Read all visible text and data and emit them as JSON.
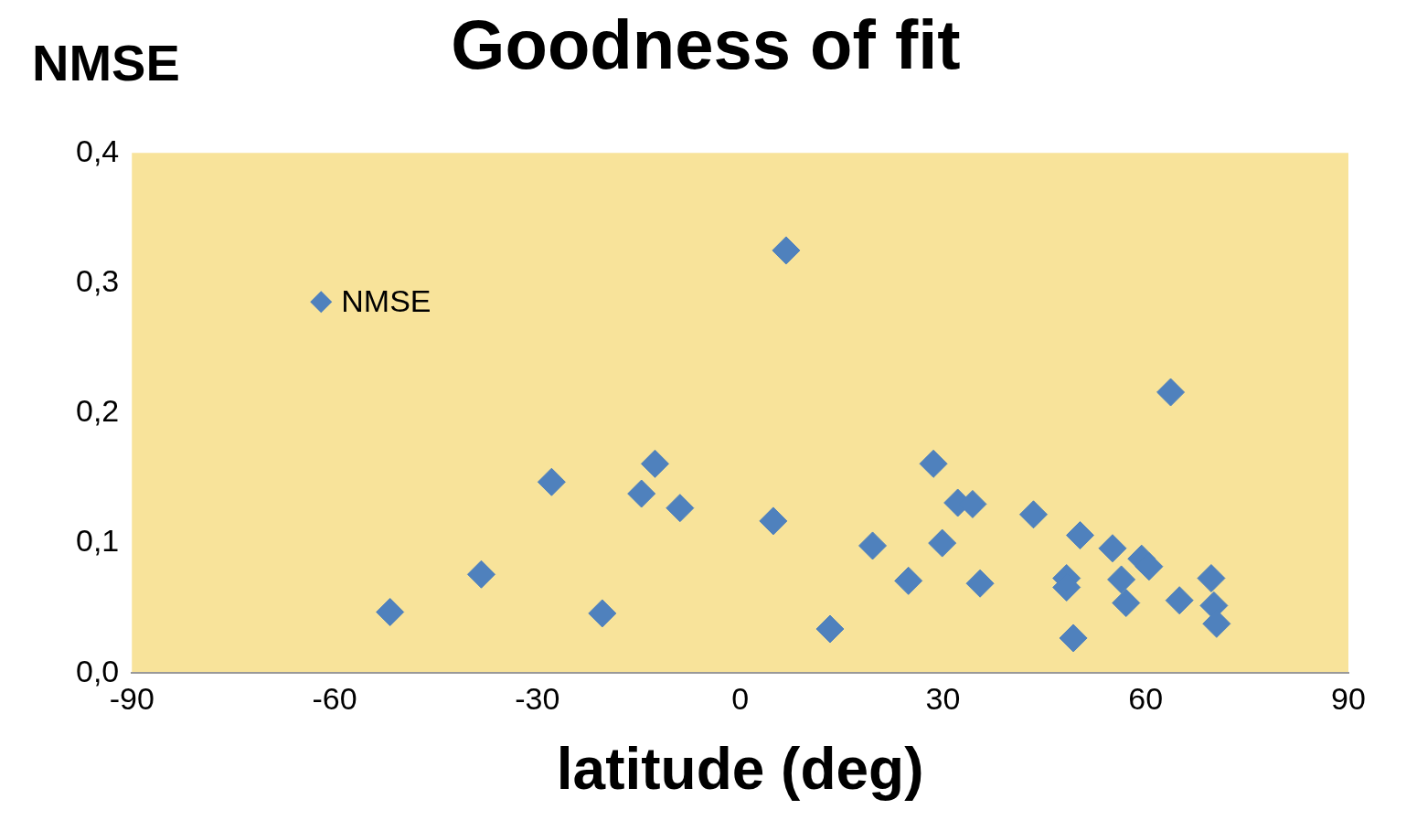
{
  "chart_data": {
    "type": "scatter",
    "title": "Goodness of fit",
    "xlabel": "latitude (deg)",
    "ylabel": "NMSE",
    "series": [
      {
        "name": "NMSE",
        "color": "#4f81bd",
        "x": [
          -51.8,
          -38.3,
          -27.9,
          -20.4,
          -14.6,
          -12.6,
          -8.9,
          4.9,
          6.8,
          13.3,
          19.6,
          24.9,
          28.6,
          29.9,
          32.2,
          34.4,
          35.5,
          43.4,
          48.3,
          48.3,
          49.3,
          50.3,
          55.1,
          56.4,
          57.1,
          59.4,
          60.5,
          63.7,
          65.0,
          69.7,
          70.1,
          70.5
        ],
        "values": [
          0.047,
          0.076,
          0.147,
          0.046,
          0.138,
          0.161,
          0.127,
          0.117,
          0.325,
          0.034,
          0.098,
          0.071,
          0.161,
          0.1,
          0.131,
          0.13,
          0.069,
          0.122,
          0.073,
          0.066,
          0.027,
          0.106,
          0.096,
          0.072,
          0.054,
          0.088,
          0.082,
          0.216,
          0.056,
          0.073,
          0.052,
          0.038
        ]
      }
    ],
    "xlim": [
      -90,
      90
    ],
    "xticks": [
      -90,
      -60,
      -30,
      0,
      30,
      60,
      90
    ],
    "ylim": [
      0,
      0.4
    ],
    "yticks": [
      {
        "value": 0,
        "label": "0,0"
      },
      {
        "value": 0.1,
        "label": "0,1"
      },
      {
        "value": 0.2,
        "label": "0,2"
      },
      {
        "value": 0.3,
        "label": "0,3"
      },
      {
        "value": 0.4,
        "label": "0,4"
      }
    ],
    "marker": "diamond",
    "legend": "top left",
    "grid": false
  }
}
